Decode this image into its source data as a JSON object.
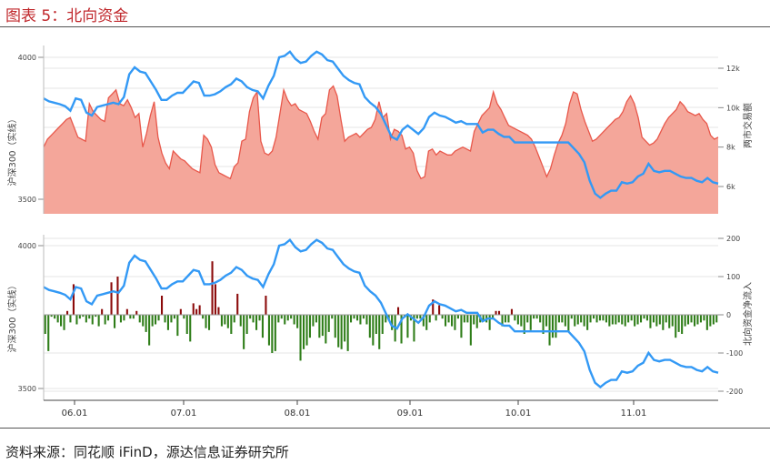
{
  "header": {
    "title": "图表 5：北向资金"
  },
  "source": {
    "text": "资料来源：同花顺 iFinD，源达信息证券研究所"
  },
  "colors": {
    "index_line": "#3399f5",
    "turnover_fill": "#f4a69a",
    "turnover_line": "#e8574a",
    "inflow_pos": "#8b0a0a",
    "inflow_neg": "#2e7d18",
    "title_red": "#c0282c"
  },
  "chart_data": [
    {
      "type": "line",
      "ylabel": "沪深300（实线）",
      "y2label": "两市交易额",
      "ylim": [
        3480,
        4020
      ],
      "y2lim": [
        4500,
        13500
      ],
      "yticks": [
        "3500",
        "4000"
      ],
      "y2ticks": [
        "6k",
        "8k",
        "10k",
        "12k"
      ],
      "xticks": [
        "06.01",
        "07.01",
        "08.01",
        "09.01",
        "10.01",
        "11.01"
      ],
      "grid": true,
      "series": [
        {
          "role": "index",
          "kind": "line",
          "values": [
            3855,
            3845,
            3840,
            3835,
            3828,
            3812,
            3855,
            3850,
            3805,
            3795,
            3825,
            3830,
            3835,
            3840,
            3835,
            3860,
            3940,
            3965,
            3950,
            3945,
            3915,
            3885,
            3850,
            3850,
            3865,
            3875,
            3875,
            3895,
            3915,
            3910,
            3865,
            3865,
            3870,
            3880,
            3895,
            3905,
            3925,
            3915,
            3895,
            3885,
            3880,
            3855,
            3900,
            3935,
            4000,
            4005,
            4020,
            3995,
            3980,
            3985,
            4005,
            4020,
            4010,
            3990,
            3985,
            3960,
            3935,
            3920,
            3910,
            3905,
            3860,
            3840,
            3825,
            3800,
            3760,
            3720,
            3710,
            3745,
            3760,
            3745,
            3730,
            3750,
            3790,
            3805,
            3795,
            3790,
            3780,
            3770,
            3775,
            3765,
            3765,
            3765,
            3735,
            3745,
            3745,
            3730,
            3720,
            3720,
            3700,
            3700,
            3700,
            3700,
            3700,
            3700,
            3700,
            3700,
            3700,
            3700,
            3700,
            3680,
            3660,
            3630,
            3565,
            3520,
            3505,
            3520,
            3530,
            3530,
            3560,
            3555,
            3560,
            3580,
            3590,
            3625,
            3600,
            3595,
            3600,
            3600,
            3590,
            3580,
            3575,
            3575,
            3565,
            3560,
            3575,
            3560,
            3555
          ]
        },
        {
          "role": "turnover",
          "kind": "area",
          "values": [
            8000,
            8400,
            8600,
            8800,
            9000,
            9200,
            9400,
            9500,
            9000,
            8500,
            8400,
            8300,
            10200,
            9800,
            9600,
            9400,
            9300,
            10500,
            10700,
            10900,
            10200,
            10100,
            10400,
            10000,
            9500,
            9700,
            8000,
            8700,
            9600,
            10300,
            8500,
            7700,
            7200,
            6900,
            7800,
            7600,
            7400,
            7300,
            7100,
            6900,
            6800,
            6700,
            8600,
            8400,
            8000,
            7100,
            6700,
            6600,
            6500,
            6400,
            7000,
            7200,
            8300,
            8400,
            9800,
            10500,
            10800,
            8300,
            7700,
            7600,
            7800,
            8500,
            9700,
            10900,
            10400,
            10100,
            10200,
            9900,
            9800,
            9700,
            9300,
            8800,
            8400,
            9500,
            9700,
            10900,
            11100,
            10600,
            9400,
            8300,
            8500,
            8600,
            8700,
            8500,
            8700,
            8900,
            9000,
            9400,
            10300,
            9500,
            9700,
            8400,
            8900,
            8800,
            8600,
            7900,
            8000,
            7700,
            6800,
            6400,
            6500,
            7800,
            7900,
            7600,
            7800,
            7700,
            7600,
            7600,
            7800,
            7900,
            8000,
            7900,
            7800,
            8800,
            9200,
            9600,
            9800,
            10000,
            10800,
            10200,
            9900,
            9500,
            9100,
            9000,
            8900,
            8800,
            8700,
            8600,
            8400,
            8000,
            7500,
            7000,
            6500,
            6900,
            7600,
            8200,
            8600,
            9200,
            10200,
            10800,
            10700,
            9900,
            9300,
            8800,
            8300,
            8400,
            8600,
            8800,
            9000,
            9200,
            9400,
            9500,
            9800,
            10300,
            10600,
            10200,
            9500,
            8500,
            8300,
            8100,
            8200,
            8400,
            8800,
            9200,
            9500,
            9700,
            9900,
            10300,
            10100,
            9800,
            9700,
            9600,
            9700,
            9400,
            9200,
            8600,
            8400,
            8500
          ]
        }
      ]
    },
    {
      "type": "bar",
      "ylabel": "沪深300（实线）",
      "y2label": "北向资金净流入",
      "ylim": [
        3480,
        4020
      ],
      "y2lim": [
        -205,
        205
      ],
      "yticks": [
        "3500",
        "4000"
      ],
      "y2ticks": [
        "-200",
        "-100",
        "0",
        "100",
        "200"
      ],
      "xticks": [
        "06.01",
        "07.01",
        "08.01",
        "09.01",
        "10.01",
        "11.01"
      ],
      "grid": true,
      "series": [
        {
          "role": "index",
          "kind": "line",
          "values": [
            3855,
            3845,
            3840,
            3835,
            3828,
            3812,
            3855,
            3850,
            3805,
            3795,
            3825,
            3830,
            3835,
            3840,
            3835,
            3860,
            3940,
            3965,
            3950,
            3945,
            3915,
            3885,
            3850,
            3850,
            3865,
            3875,
            3875,
            3895,
            3915,
            3910,
            3865,
            3865,
            3870,
            3880,
            3895,
            3905,
            3925,
            3915,
            3895,
            3885,
            3880,
            3855,
            3900,
            3935,
            4000,
            4005,
            4020,
            3995,
            3980,
            3985,
            4005,
            4020,
            4010,
            3990,
            3985,
            3960,
            3935,
            3920,
            3910,
            3905,
            3860,
            3840,
            3825,
            3800,
            3760,
            3720,
            3710,
            3745,
            3760,
            3745,
            3730,
            3750,
            3790,
            3805,
            3795,
            3790,
            3780,
            3770,
            3775,
            3765,
            3765,
            3765,
            3735,
            3745,
            3745,
            3730,
            3720,
            3720,
            3700,
            3700,
            3700,
            3700,
            3700,
            3700,
            3700,
            3700,
            3700,
            3700,
            3700,
            3680,
            3660,
            3630,
            3565,
            3520,
            3505,
            3520,
            3530,
            3530,
            3560,
            3555,
            3560,
            3580,
            3590,
            3625,
            3600,
            3595,
            3600,
            3600,
            3590,
            3580,
            3575,
            3575,
            3565,
            3560,
            3575,
            3560,
            3555
          ]
        },
        {
          "role": "inflow",
          "kind": "bar",
          "values": [
            -50,
            -95,
            -5,
            -10,
            -20,
            -30,
            -40,
            10,
            -20,
            80,
            -25,
            -10,
            -5,
            -20,
            -10,
            -25,
            -5,
            -30,
            15,
            -25,
            -15,
            85,
            -35,
            100,
            -20,
            -15,
            15,
            -10,
            -10,
            10,
            -20,
            -30,
            -45,
            -80,
            -30,
            -25,
            -15,
            50,
            -20,
            -40,
            -20,
            -10,
            -55,
            15,
            -10,
            -50,
            -70,
            30,
            15,
            25,
            -10,
            -35,
            -40,
            140,
            80,
            20,
            -30,
            -25,
            -35,
            -50,
            -20,
            55,
            -30,
            -90,
            -50,
            -10,
            -20,
            -40,
            -15,
            -60,
            50,
            -80,
            -100,
            -95,
            -20,
            -10,
            -25,
            -15,
            -10,
            -25,
            -35,
            -120,
            -90,
            -80,
            -60,
            -30,
            -20,
            -60,
            -55,
            -75,
            -45,
            -10,
            -60,
            -85,
            -90,
            -70,
            -95,
            -20,
            -10,
            -15,
            -25,
            -10,
            -25,
            -60,
            -80,
            -50,
            -90,
            -50,
            -20,
            -15,
            -40,
            -70,
            20,
            -75,
            -5,
            -60,
            -15,
            -70,
            -10,
            -10,
            -30,
            -40,
            -20,
            40,
            -15,
            25,
            -10,
            -30,
            -20,
            -30,
            -40,
            -10,
            -60,
            -20,
            -20,
            -80,
            -25,
            -35,
            -20,
            -15,
            -20,
            -40,
            -10,
            10,
            10,
            -30,
            -20,
            -20,
            15,
            -15,
            -25,
            -30,
            -50,
            -20,
            -40,
            -10,
            -10,
            -20,
            -50,
            -30,
            -80,
            -60,
            -60,
            -20,
            -20,
            -30,
            -45,
            -10,
            -30,
            -25,
            -20,
            -30,
            -40,
            -20,
            -10,
            -20,
            -15,
            -15,
            -20,
            -30,
            -25,
            -25,
            -20,
            -25,
            -30,
            -20,
            -15,
            -30,
            -25,
            -20,
            -10,
            -15,
            -35,
            -20,
            -30,
            -25,
            -40,
            -20,
            -35,
            -30,
            -60,
            -45,
            -50,
            -30,
            -25,
            -20,
            -30,
            -25,
            -20,
            -15,
            -40,
            -30,
            -25,
            -20
          ]
        }
      ]
    }
  ]
}
